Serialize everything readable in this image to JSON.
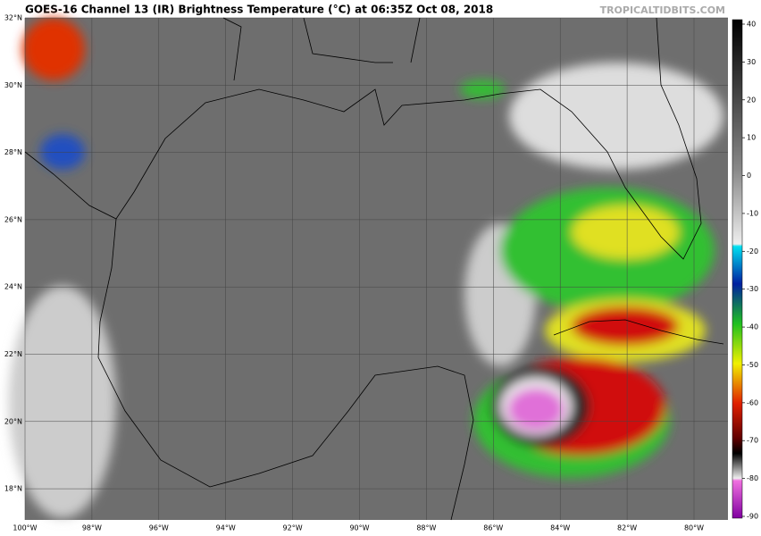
{
  "header": {
    "title": "GOES-16 Channel 13 (IR) Brightness Temperature (°C) at 06:35Z Oct 08, 2018",
    "watermark": "TROPICALTIDBITS.COM"
  },
  "map": {
    "lat_labels": [
      "32°N",
      "30°N",
      "28°N",
      "26°N",
      "24°N",
      "22°N",
      "20°N",
      "18°N"
    ],
    "lon_labels": [
      "100°W",
      "98°W",
      "96°W",
      "94°W",
      "92°W",
      "90°W",
      "88°W",
      "86°W",
      "84°W",
      "82°W",
      "80°W"
    ]
  },
  "colorbar": {
    "ticks": [
      40,
      30,
      20,
      10,
      0,
      -10,
      -20,
      -30,
      -40,
      -50,
      -60,
      -70,
      -80,
      -90
    ]
  }
}
